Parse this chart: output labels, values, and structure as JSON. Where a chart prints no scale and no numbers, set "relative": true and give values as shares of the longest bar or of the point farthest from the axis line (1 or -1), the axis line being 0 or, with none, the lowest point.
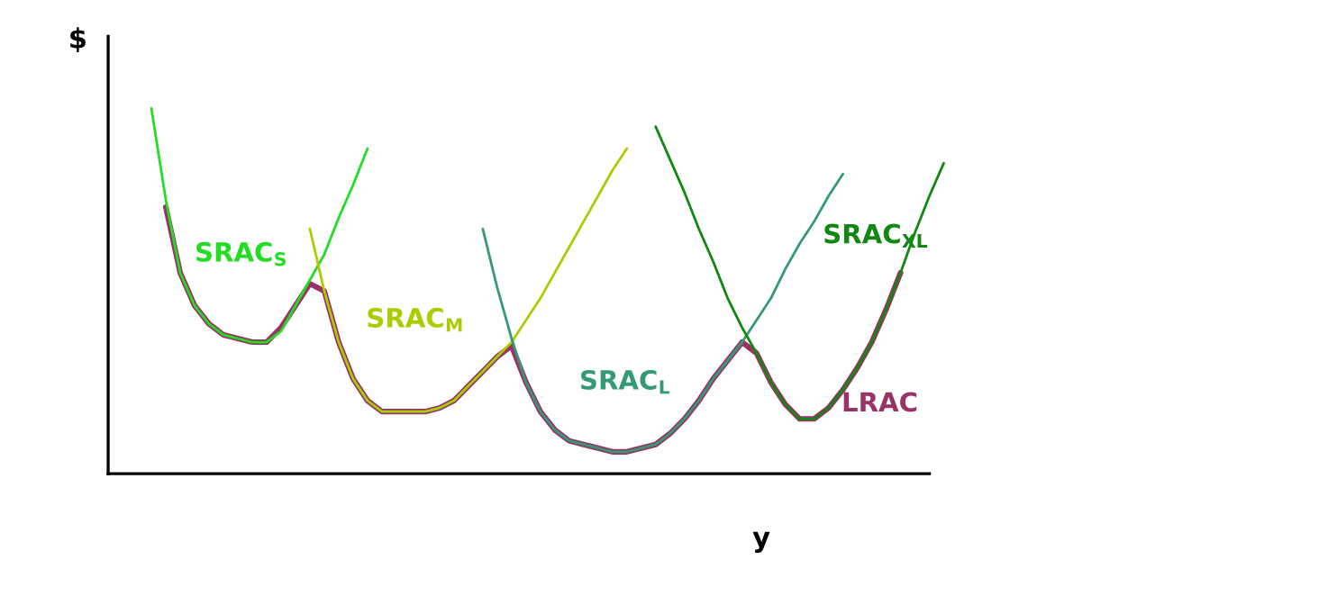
{
  "chart_data": {
    "type": "line",
    "relative": true,
    "ylabel": "$",
    "xlabel": "y",
    "categories": [
      null,
      null,
      null,
      null,
      null,
      null,
      null,
      null,
      null,
      null,
      null,
      null,
      null,
      null,
      null,
      null,
      null,
      null,
      null,
      null,
      null,
      null,
      null,
      null,
      null,
      null,
      null,
      null,
      null,
      null,
      null,
      null,
      null,
      null,
      null,
      null,
      null,
      null,
      null,
      null,
      null,
      null,
      null,
      null,
      null,
      null,
      null,
      null,
      null,
      null,
      null,
      null,
      null,
      null,
      null,
      null,
      null,
      null,
      null
    ],
    "series": [
      {
        "name": "SRAC$_{S}$",
        "color": "#22dd22",
        "values": [
          null,
          null,
          null,
          1.0,
          0.75,
          0.55,
          0.46,
          0.41,
          0.38,
          0.37,
          0.36,
          0.36,
          0.39,
          0.46,
          0.53,
          0.6,
          0.7,
          0.79,
          0.89,
          null,
          null,
          null,
          null,
          null,
          null,
          null,
          null,
          null,
          null,
          null,
          null,
          null,
          null,
          null,
          null,
          null,
          null,
          null,
          null,
          null,
          null,
          null,
          null,
          null,
          null,
          null,
          null,
          null,
          null,
          null,
          null,
          null,
          null,
          null,
          null,
          null,
          null,
          null,
          null
        ]
      },
      {
        "name": "SRAC$_{M}$",
        "color": "#aacc00",
        "values": [
          null,
          null,
          null,
          null,
          null,
          null,
          null,
          null,
          null,
          null,
          null,
          null,
          null,
          null,
          0.67,
          0.5,
          0.36,
          0.26,
          0.2,
          0.17,
          0.17,
          0.17,
          0.17,
          0.18,
          0.2,
          0.24,
          0.28,
          0.32,
          0.36,
          0.42,
          0.48,
          0.55,
          0.62,
          0.69,
          0.76,
          0.83,
          0.89,
          null,
          null,
          null,
          null,
          null,
          null,
          null,
          null,
          null,
          null,
          null,
          null,
          null,
          null,
          null,
          null,
          null,
          null,
          null,
          null,
          null,
          null
        ]
      },
      {
        "name": "SRAC$_{L}$",
        "color": "#339977",
        "values": [
          null,
          null,
          null,
          null,
          null,
          null,
          null,
          null,
          null,
          null,
          null,
          null,
          null,
          null,
          null,
          null,
          null,
          null,
          null,
          null,
          null,
          null,
          null,
          null,
          null,
          null,
          0.67,
          0.51,
          0.37,
          0.25,
          0.17,
          0.12,
          0.09,
          0.08,
          0.07,
          0.06,
          0.06,
          0.07,
          0.08,
          0.11,
          0.15,
          0.2,
          0.26,
          0.31,
          0.36,
          0.42,
          0.48,
          0.56,
          0.63,
          0.69,
          0.76,
          0.82,
          null,
          null,
          null,
          null,
          null,
          null,
          null
        ]
      },
      {
        "name": "SRAC$_{XL}$",
        "color": "#118811",
        "values": [
          null,
          null,
          null,
          null,
          null,
          null,
          null,
          null,
          null,
          null,
          null,
          null,
          null,
          null,
          null,
          null,
          null,
          null,
          null,
          null,
          null,
          null,
          null,
          null,
          null,
          null,
          null,
          null,
          null,
          null,
          null,
          null,
          null,
          null,
          null,
          null,
          null,
          null,
          0.95,
          0.86,
          0.77,
          0.67,
          0.58,
          0.48,
          0.4,
          0.33,
          0.25,
          0.19,
          0.15,
          0.15,
          0.18,
          0.23,
          0.29,
          0.36,
          0.45,
          0.55,
          0.66,
          0.76,
          0.85
        ]
      },
      {
        "name": "LRAC",
        "color": "#993366",
        "values": [
          null,
          null,
          null,
          null,
          0.73,
          0.55,
          0.46,
          0.41,
          0.38,
          0.37,
          0.36,
          0.36,
          0.4,
          0.46,
          0.52,
          0.5,
          0.36,
          0.26,
          0.2,
          0.17,
          0.17,
          0.17,
          0.17,
          0.18,
          0.2,
          0.24,
          0.28,
          0.32,
          0.35,
          0.25,
          0.17,
          0.12,
          0.09,
          0.08,
          0.07,
          0.06,
          0.06,
          0.07,
          0.08,
          0.11,
          0.15,
          0.2,
          0.26,
          0.31,
          0.36,
          0.33,
          0.25,
          0.19,
          0.15,
          0.15,
          0.18,
          0.23,
          0.29,
          0.36,
          0.45,
          0.55,
          null,
          null,
          null
        ]
      }
    ]
  }
}
